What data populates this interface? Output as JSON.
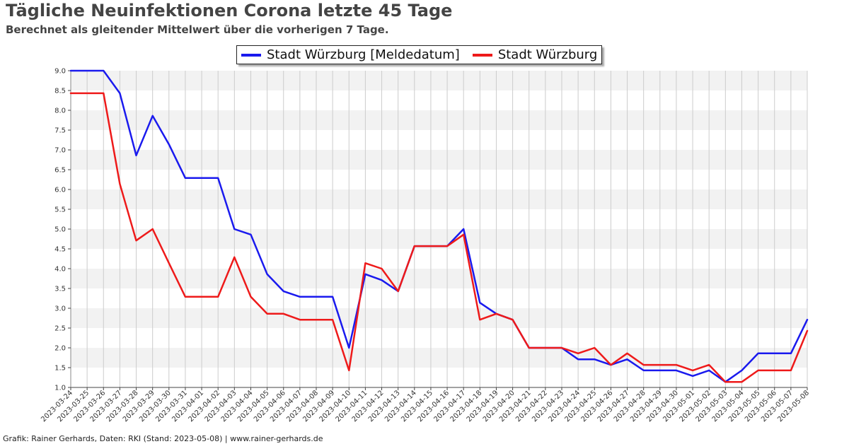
{
  "header": {
    "title": "Tägliche Neuinfektionen Corona letzte 45 Tage",
    "subtitle": "Berechnet als gleitender Mittelwert über die vorherigen 7 Tage."
  },
  "footer": {
    "text": "Grafik: Rainer Gerhards, Daten: RKI (Stand: 2023-05-08) | www.rainer-gerhards.de"
  },
  "colors": {
    "series_blue": "#1a1aee",
    "series_red": "#ee1a1a",
    "band": "#f2f2f2",
    "grid": "#cccccc"
  },
  "chart_data": {
    "type": "line",
    "title": "Tägliche Neuinfektionen Corona letzte 45 Tage",
    "subtitle": "Berechnet als gleitender Mittelwert über die vorherigen 7 Tage.",
    "xlabel": "",
    "ylabel": "",
    "ylim": [
      1.0,
      9.0
    ],
    "yticks": [
      "1.0",
      "1.5",
      "2.0",
      "2.5",
      "3.0",
      "3.5",
      "4.0",
      "4.5",
      "5.0",
      "5.5",
      "6.0",
      "6.5",
      "7.0",
      "7.5",
      "8.0",
      "8.5",
      "9.0"
    ],
    "grid": true,
    "legend_position": "top-center",
    "x": [
      "2023-03-24",
      "2023-03-25",
      "2023-03-26",
      "2023-03-27",
      "2023-03-28",
      "2023-03-29",
      "2023-03-30",
      "2023-03-31",
      "2023-04-01",
      "2023-04-02",
      "2023-04-03",
      "2023-04-04",
      "2023-04-05",
      "2023-04-06",
      "2023-04-07",
      "2023-04-08",
      "2023-04-09",
      "2023-04-10",
      "2023-04-11",
      "2023-04-12",
      "2023-04-13",
      "2023-04-14",
      "2023-04-15",
      "2023-04-16",
      "2023-04-17",
      "2023-04-18",
      "2023-04-19",
      "2023-04-20",
      "2023-04-21",
      "2023-04-22",
      "2023-04-23",
      "2023-04-24",
      "2023-04-25",
      "2023-04-26",
      "2023-04-27",
      "2023-04-28",
      "2023-04-29",
      "2023-04-30",
      "2023-05-01",
      "2023-05-02",
      "2023-05-03",
      "2023-05-04",
      "2023-05-05",
      "2023-05-06",
      "2023-05-07",
      "2023-05-08"
    ],
    "series": [
      {
        "name": "Stadt Würzburg [Meldedatum]",
        "color": "#1a1aee",
        "values": [
          9.0,
          9.0,
          9.0,
          8.43,
          6.86,
          7.86,
          7.14,
          6.29,
          6.29,
          6.29,
          5.0,
          4.86,
          3.86,
          3.43,
          3.29,
          3.29,
          3.29,
          2.0,
          3.86,
          3.71,
          3.43,
          4.57,
          4.57,
          4.57,
          5.0,
          3.14,
          2.86,
          2.71,
          2.0,
          2.0,
          2.0,
          1.71,
          1.71,
          1.57,
          1.71,
          1.43,
          1.43,
          1.43,
          1.29,
          1.43,
          1.14,
          1.43,
          1.86,
          1.86,
          1.86,
          2.71
        ]
      },
      {
        "name": "Stadt Würzburg",
        "color": "#ee1a1a",
        "values": [
          8.43,
          8.43,
          8.43,
          6.14,
          4.71,
          5.0,
          4.14,
          3.29,
          3.29,
          3.29,
          4.29,
          3.29,
          2.86,
          2.86,
          2.71,
          2.71,
          2.71,
          1.43,
          4.14,
          4.0,
          3.43,
          4.57,
          4.57,
          4.57,
          4.86,
          2.71,
          2.86,
          2.71,
          2.0,
          2.0,
          2.0,
          1.86,
          2.0,
          1.57,
          1.86,
          1.57,
          1.57,
          1.57,
          1.43,
          1.57,
          1.14,
          1.14,
          1.43,
          1.43,
          1.43,
          2.43
        ]
      }
    ]
  }
}
